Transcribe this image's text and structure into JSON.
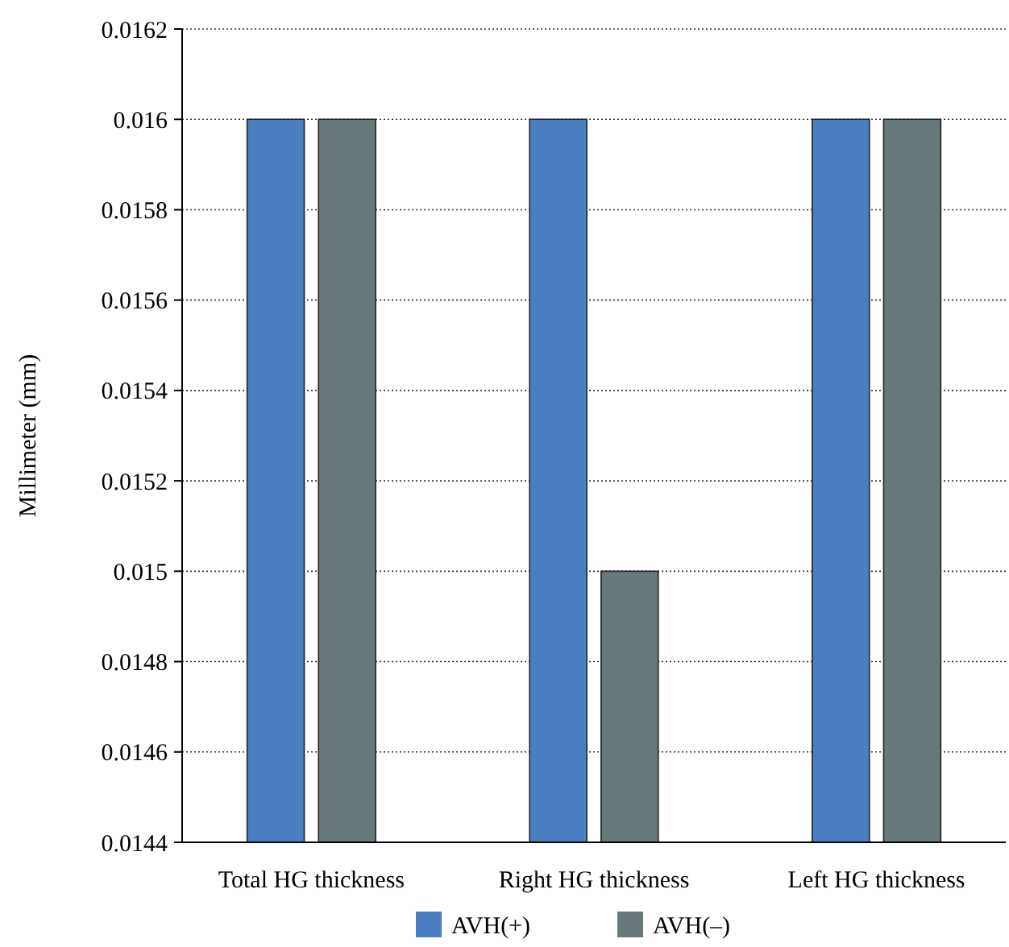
{
  "chart_data": {
    "type": "bar",
    "ylabel": "Millimeter (mm)",
    "categories": [
      "Total HG thickness",
      "Right HG thickness",
      "Left HG thickness"
    ],
    "series": [
      {
        "name": "AVH(+)",
        "color": "#4a7fc1",
        "values": [
          0.016,
          0.016,
          0.016
        ]
      },
      {
        "name": "AVH(–)",
        "color": "#68797c",
        "values": [
          0.016,
          0.015,
          0.016
        ]
      }
    ],
    "ylim": [
      0.0144,
      0.0162
    ],
    "yticks": [
      0.0144,
      0.0146,
      0.0148,
      0.015,
      0.0152,
      0.0154,
      0.0156,
      0.0158,
      0.016,
      0.0162
    ],
    "grid": "y",
    "legend": "bottom"
  }
}
